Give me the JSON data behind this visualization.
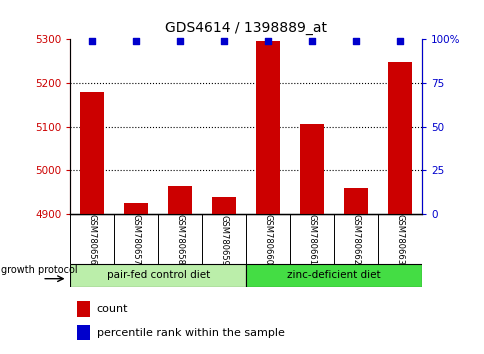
{
  "title": "GDS4614 / 1398889_at",
  "samples": [
    "GSM780656",
    "GSM780657",
    "GSM780658",
    "GSM780659",
    "GSM780660",
    "GSM780661",
    "GSM780662",
    "GSM780663"
  ],
  "counts": [
    5178,
    4925,
    4965,
    4940,
    5295,
    5105,
    4960,
    5248
  ],
  "percentiles": [
    99,
    99,
    99,
    99,
    99,
    99,
    99,
    99
  ],
  "ylim_left": [
    4900,
    5300
  ],
  "ylim_right": [
    0,
    100
  ],
  "yticks_left": [
    4900,
    5000,
    5100,
    5200,
    5300
  ],
  "yticks_right": [
    0,
    25,
    50,
    75,
    100
  ],
  "ytick_labels_right": [
    "0",
    "25",
    "50",
    "75",
    "100%"
  ],
  "bar_color": "#cc0000",
  "dot_color": "#0000cc",
  "group1_label": "pair-fed control diet",
  "group2_label": "zinc-deficient diet",
  "group1_color": "#bbeeaa",
  "group2_color": "#44dd44",
  "group_label_prefix": "growth protocol",
  "legend_count_label": "count",
  "legend_percentile_label": "percentile rank within the sample",
  "bar_width": 0.55,
  "background_color": "#ffffff",
  "tick_label_area_color": "#cccccc",
  "figsize": [
    4.85,
    3.54
  ],
  "dpi": 100
}
